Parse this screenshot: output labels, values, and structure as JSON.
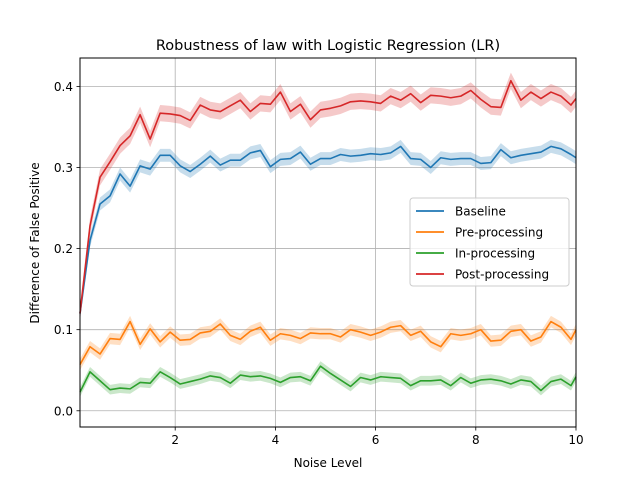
{
  "chart_data": {
    "type": "line",
    "title": "Robustness of law with Logistic Regression (LR)",
    "xlabel": "Noise Level",
    "ylabel": "Difference of False Positive",
    "xlim": [
      0.1,
      10
    ],
    "ylim": [
      -0.02,
      0.435
    ],
    "xticks": [
      2,
      4,
      6,
      8,
      10
    ],
    "yticks": [
      0.0,
      0.1,
      0.2,
      0.3,
      0.4
    ],
    "xtick_labels": [
      "2",
      "4",
      "6",
      "8",
      "10"
    ],
    "ytick_labels": [
      "0.0",
      "0.1",
      "0.2",
      "0.3",
      "0.4"
    ],
    "grid": true,
    "legend_position": "center-right",
    "x": [
      0.1,
      0.3,
      0.5,
      0.7,
      0.9,
      1.1,
      1.3,
      1.5,
      1.7,
      1.9,
      2.1,
      2.3,
      2.5,
      2.7,
      2.9,
      3.1,
      3.3,
      3.5,
      3.7,
      3.9,
      4.1,
      4.3,
      4.5,
      4.7,
      4.9,
      5.1,
      5.3,
      5.5,
      5.7,
      5.9,
      6.1,
      6.3,
      6.5,
      6.7,
      6.9,
      7.1,
      7.3,
      7.5,
      7.7,
      7.9,
      8.1,
      8.3,
      8.5,
      8.7,
      8.9,
      9.1,
      9.3,
      9.5,
      9.7,
      9.9,
      10.0
    ],
    "series": [
      {
        "name": "Baseline",
        "color": "#1f77b4",
        "band": 0.008,
        "values": [
          0.12,
          0.21,
          0.255,
          0.265,
          0.292,
          0.277,
          0.302,
          0.298,
          0.315,
          0.315,
          0.302,
          0.295,
          0.304,
          0.314,
          0.303,
          0.309,
          0.309,
          0.318,
          0.321,
          0.301,
          0.31,
          0.311,
          0.319,
          0.304,
          0.311,
          0.311,
          0.316,
          0.314,
          0.315,
          0.317,
          0.316,
          0.318,
          0.326,
          0.311,
          0.31,
          0.3,
          0.312,
          0.31,
          0.311,
          0.311,
          0.305,
          0.306,
          0.322,
          0.312,
          0.315,
          0.317,
          0.319,
          0.326,
          0.323,
          0.316,
          0.312
        ]
      },
      {
        "name": "Pre-processing",
        "color": "#ff7f0e",
        "band": 0.007,
        "values": [
          0.057,
          0.079,
          0.07,
          0.089,
          0.088,
          0.11,
          0.082,
          0.101,
          0.085,
          0.097,
          0.087,
          0.088,
          0.096,
          0.098,
          0.107,
          0.093,
          0.088,
          0.098,
          0.103,
          0.087,
          0.095,
          0.093,
          0.089,
          0.096,
          0.095,
          0.095,
          0.091,
          0.1,
          0.097,
          0.093,
          0.097,
          0.103,
          0.105,
          0.093,
          0.098,
          0.085,
          0.079,
          0.095,
          0.093,
          0.095,
          0.1,
          0.086,
          0.087,
          0.098,
          0.1,
          0.086,
          0.091,
          0.11,
          0.103,
          0.088,
          0.1
        ]
      },
      {
        "name": "In-processing",
        "color": "#2ca02c",
        "band": 0.006,
        "values": [
          0.023,
          0.048,
          0.037,
          0.026,
          0.028,
          0.027,
          0.035,
          0.034,
          0.048,
          0.041,
          0.033,
          0.036,
          0.039,
          0.043,
          0.041,
          0.034,
          0.044,
          0.042,
          0.043,
          0.04,
          0.035,
          0.041,
          0.042,
          0.037,
          0.055,
          0.046,
          0.038,
          0.03,
          0.041,
          0.038,
          0.042,
          0.041,
          0.04,
          0.031,
          0.037,
          0.037,
          0.038,
          0.031,
          0.041,
          0.034,
          0.038,
          0.039,
          0.037,
          0.033,
          0.038,
          0.036,
          0.025,
          0.036,
          0.039,
          0.031,
          0.042
        ]
      },
      {
        "name": "Post-processing",
        "color": "#d62728",
        "band": 0.01,
        "values": [
          0.12,
          0.228,
          0.288,
          0.307,
          0.327,
          0.339,
          0.365,
          0.335,
          0.367,
          0.366,
          0.364,
          0.358,
          0.377,
          0.371,
          0.369,
          0.376,
          0.383,
          0.369,
          0.379,
          0.378,
          0.393,
          0.369,
          0.378,
          0.359,
          0.371,
          0.373,
          0.376,
          0.381,
          0.382,
          0.381,
          0.379,
          0.388,
          0.383,
          0.391,
          0.38,
          0.389,
          0.388,
          0.386,
          0.388,
          0.395,
          0.384,
          0.375,
          0.374,
          0.407,
          0.383,
          0.393,
          0.385,
          0.393,
          0.388,
          0.377,
          0.385
        ]
      }
    ]
  }
}
